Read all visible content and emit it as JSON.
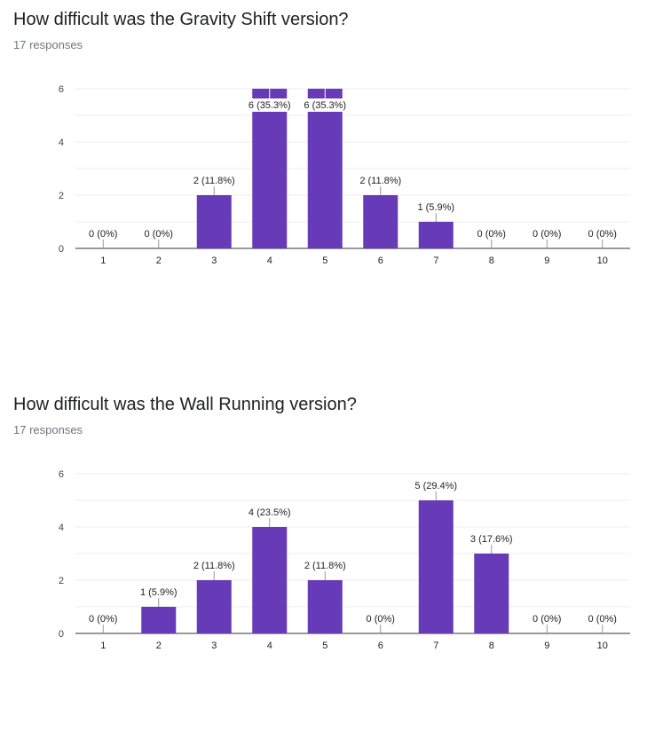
{
  "chart_data": [
    {
      "type": "bar",
      "title": "How difficult was the Gravity Shift version?",
      "subtitle": "17 responses",
      "categories": [
        "1",
        "2",
        "3",
        "4",
        "5",
        "6",
        "7",
        "8",
        "9",
        "10"
      ],
      "values": [
        0,
        0,
        2,
        6,
        6,
        2,
        1,
        0,
        0,
        0
      ],
      "data_labels": [
        "0 (0%)",
        "0 (0%)",
        "2 (11.8%)",
        "6 (35.3%)",
        "6 (35.3%)",
        "2 (11.8%)",
        "1 (5.9%)",
        "0 (0%)",
        "0 (0%)",
        "0 (0%)"
      ],
      "y_ticks": [
        "0",
        "2",
        "4",
        "6"
      ],
      "ylim": [
        0,
        6
      ],
      "grid": true,
      "bar_color": "#673ab7"
    },
    {
      "type": "bar",
      "title": "How difficult was the Wall Running version?",
      "subtitle": "17 responses",
      "categories": [
        "1",
        "2",
        "3",
        "4",
        "5",
        "6",
        "7",
        "8",
        "9",
        "10"
      ],
      "values": [
        0,
        1,
        2,
        4,
        2,
        0,
        5,
        3,
        0,
        0
      ],
      "data_labels": [
        "0 (0%)",
        "1 (5.9%)",
        "2 (11.8%)",
        "4 (23.5%)",
        "2 (11.8%)",
        "0 (0%)",
        "5 (29.4%)",
        "3 (17.6%)",
        "0 (0%)",
        "0 (0%)"
      ],
      "y_ticks": [
        "0",
        "2",
        "4",
        "6"
      ],
      "ylim": [
        0,
        6
      ],
      "grid": true,
      "bar_color": "#673ab7"
    }
  ]
}
